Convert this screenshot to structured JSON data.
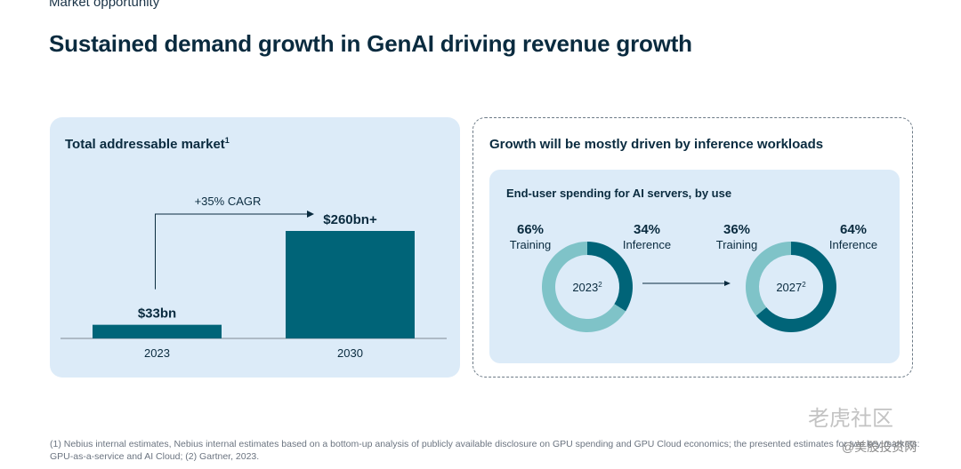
{
  "section_label": "Market opportunity",
  "title": "Sustained demand growth in GenAI driving revenue growth",
  "left_panel": {
    "title": "Total addressable market",
    "footnote_marker": "1"
  },
  "right_panel": {
    "title": "Growth will be mostly driven by inference workloads",
    "card_title": "End-user spending for AI servers, by use"
  },
  "chart_data": [
    {
      "type": "bar",
      "title": "Total addressable market",
      "categories": [
        "2023",
        "2030"
      ],
      "values": [
        33,
        260
      ],
      "value_labels": [
        "$33bn",
        "$260bn+"
      ],
      "unit": "$bn",
      "annotation": "+35% CAGR",
      "ylim": [
        0,
        260
      ],
      "grid": false,
      "colors": {
        "bar": "#006478",
        "background": "#dcebf8"
      }
    },
    {
      "type": "pie",
      "title": "End-user spending for AI servers, by use",
      "donuts": [
        {
          "center_label": "2023",
          "center_sup": "2",
          "slices": [
            {
              "label": "Training",
              "value": 66,
              "display": "66%",
              "color": "#7fc3c8"
            },
            {
              "label": "Inference",
              "value": 34,
              "display": "34%",
              "color": "#006478"
            }
          ]
        },
        {
          "center_label": "2027",
          "center_sup": "2",
          "slices": [
            {
              "label": "Training",
              "value": 36,
              "display": "36%",
              "color": "#7fc3c8"
            },
            {
              "label": "Inference",
              "value": 64,
              "display": "64%",
              "color": "#006478"
            }
          ]
        }
      ]
    }
  ],
  "footnote": "(1) Nebius internal estimates, Nebius internal estimates based on a bottom-up analysis of publicly available disclosure on GPU spending and GPU Cloud economics; the presented estimates for two key markets: GPU-as-a-service and AI Cloud; (2) Gartner, 2023.",
  "watermark": {
    "line1": "老虎社区",
    "line2": "@美股投资网"
  }
}
